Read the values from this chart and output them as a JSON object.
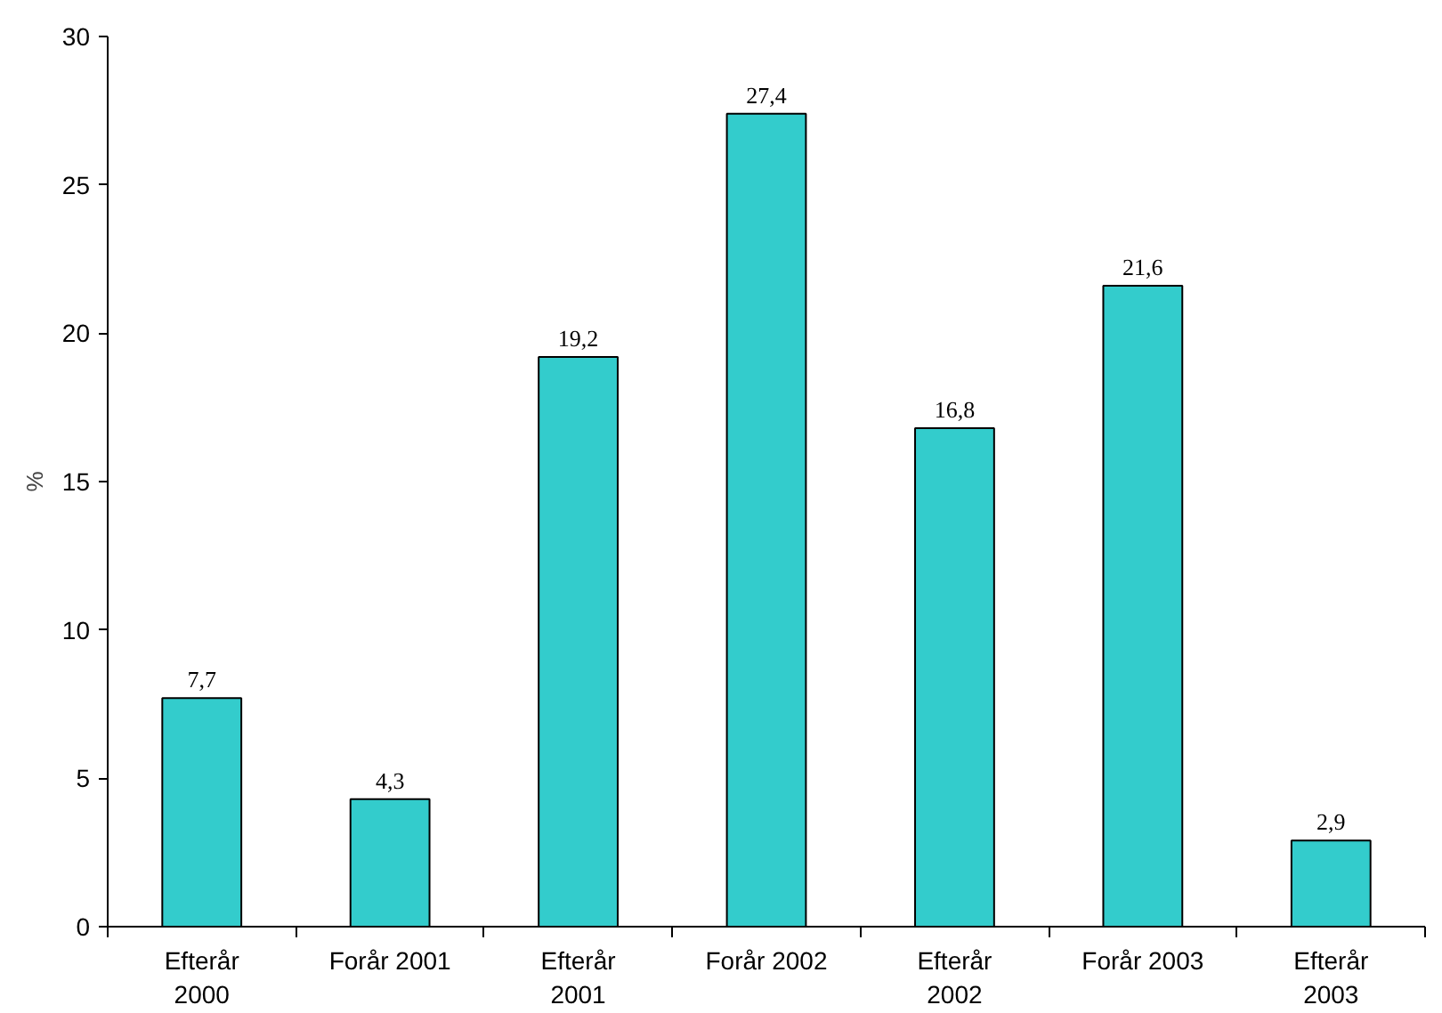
{
  "chart_data": {
    "type": "bar",
    "ylabel": "%",
    "categories": [
      "Efterår\n2000",
      "Forår 2001",
      "Efterår\n2001",
      "Forår 2002",
      "Efterår\n2002",
      "Forår 2003",
      "Efterår\n2003"
    ],
    "values": [
      7.7,
      4.3,
      19.2,
      27.4,
      16.8,
      21.6,
      2.9
    ],
    "value_labels": [
      "7,7",
      "4,3",
      "19,2",
      "27,4",
      "16,8",
      "21,6",
      "2,9"
    ],
    "color": "#33cccc",
    "ylim": [
      0,
      30
    ],
    "yticks": [
      0,
      5,
      10,
      15,
      20,
      25,
      30
    ],
    "grid": false
  }
}
